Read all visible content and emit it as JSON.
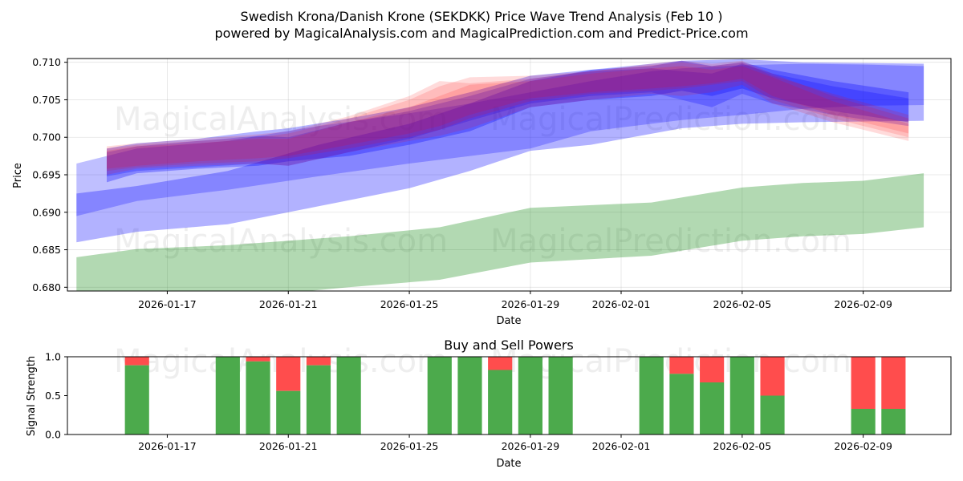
{
  "chart_data": [
    {
      "type": "area",
      "title_line1": "Swedish Krona/Danish Krone (SEKDKK) Price Wave Trend Analysis (Feb 10 )",
      "title_line2": "powered by MagicalAnalysis.com and MagicalPrediction.com and Predict-Price.com",
      "xlabel": "Date",
      "ylabel": "Price",
      "ylim": [
        0.6795,
        0.7105
      ],
      "xlim_days": [
        -3.3,
        25.9
      ],
      "date_origin": "2026-01-17",
      "x_ticks": [
        {
          "day": 0,
          "label": "2026-01-17"
        },
        {
          "day": 4,
          "label": "2026-01-21"
        },
        {
          "day": 8,
          "label": "2026-01-25"
        },
        {
          "day": 12,
          "label": "2026-01-29"
        },
        {
          "day": 15,
          "label": "2026-02-01"
        },
        {
          "day": 19,
          "label": "2026-02-05"
        },
        {
          "day": 23,
          "label": "2026-02-09"
        }
      ],
      "y_ticks": [
        {
          "value": 0.68,
          "label": "0.680"
        },
        {
          "value": 0.685,
          "label": "0.685"
        },
        {
          "value": 0.69,
          "label": "0.690"
        },
        {
          "value": 0.695,
          "label": "0.695"
        },
        {
          "value": 0.7,
          "label": "0.700"
        },
        {
          "value": 0.705,
          "label": "0.705"
        },
        {
          "value": 0.71,
          "label": "0.710"
        }
      ],
      "watermarks": [
        "MagicalAnalysis.com",
        "MagicalPrediction.com",
        "MagicalAnalysis.com",
        "MagicalPrediction.com"
      ],
      "bands": [
        {
          "name": "long-term-trend",
          "color": "#008000",
          "opacity": 0.3,
          "x": [
            -3,
            -1,
            2,
            6,
            9,
            12,
            16,
            19,
            21,
            23,
            25
          ],
          "lower": [
            0.678,
            0.6782,
            0.6785,
            0.68,
            0.681,
            0.6833,
            0.6842,
            0.6862,
            0.6868,
            0.6871,
            0.688
          ],
          "upper": [
            0.684,
            0.6851,
            0.6856,
            0.6868,
            0.688,
            0.6906,
            0.6913,
            0.6933,
            0.6939,
            0.6942,
            0.6952
          ]
        },
        {
          "name": "mid-band-wide",
          "color": "#0000ff",
          "opacity": 0.3,
          "x": [
            -3,
            -1,
            2,
            5,
            8,
            10,
            12,
            14,
            17,
            19,
            21,
            25
          ],
          "lower": [
            0.686,
            0.6874,
            0.6884,
            0.6908,
            0.6932,
            0.6955,
            0.6982,
            0.699,
            0.7012,
            0.7018,
            0.702,
            0.7022
          ],
          "upper": [
            0.6925,
            0.6935,
            0.6955,
            0.699,
            0.7018,
            0.7045,
            0.7075,
            0.709,
            0.7102,
            0.7104,
            0.71,
            0.7098
          ]
        },
        {
          "name": "mid-band-upper",
          "color": "#0000ff",
          "opacity": 0.25,
          "x": [
            -3,
            -1,
            2,
            5,
            8,
            10,
            12,
            14,
            16,
            17,
            19,
            21,
            23,
            25
          ],
          "lower": [
            0.6895,
            0.6915,
            0.693,
            0.6948,
            0.6965,
            0.6975,
            0.6985,
            0.7008,
            0.7018,
            0.7023,
            0.703,
            0.7038,
            0.7042,
            0.7043
          ],
          "upper": [
            0.6965,
            0.6985,
            0.6995,
            0.7015,
            0.7032,
            0.7045,
            0.706,
            0.7075,
            0.7088,
            0.7092,
            0.7096,
            0.7098,
            0.7097,
            0.7095
          ]
        },
        {
          "name": "blue-short-1",
          "color": "#0000ff",
          "opacity": 0.3,
          "x": [
            -2,
            -1,
            1,
            3,
            4,
            6,
            8,
            10,
            12,
            14,
            16,
            17,
            18,
            19,
            20,
            22,
            24.5
          ],
          "lower": [
            0.694,
            0.6952,
            0.6958,
            0.6962,
            0.6968,
            0.6975,
            0.699,
            0.7008,
            0.704,
            0.705,
            0.7055,
            0.7062,
            0.7055,
            0.7065,
            0.7052,
            0.7035,
            0.702
          ],
          "upper": [
            0.6985,
            0.6992,
            0.6998,
            0.7008,
            0.7012,
            0.7025,
            0.704,
            0.706,
            0.7082,
            0.709,
            0.7095,
            0.7102,
            0.7095,
            0.71,
            0.709,
            0.7075,
            0.706
          ]
        },
        {
          "name": "blue-short-2",
          "color": "#0000ff",
          "opacity": 0.25,
          "x": [
            -2,
            -1,
            1,
            3,
            4,
            6,
            8,
            10,
            12,
            14,
            16,
            17,
            18,
            19,
            20,
            22,
            24.5
          ],
          "lower": [
            0.6948,
            0.6955,
            0.696,
            0.6965,
            0.6962,
            0.698,
            0.6998,
            0.7022,
            0.7045,
            0.7055,
            0.706,
            0.705,
            0.704,
            0.7058,
            0.7045,
            0.703,
            0.7015
          ],
          "upper": [
            0.698,
            0.6988,
            0.6995,
            0.7002,
            0.7,
            0.702,
            0.7035,
            0.7055,
            0.7078,
            0.7088,
            0.7092,
            0.7088,
            0.7085,
            0.7098,
            0.7085,
            0.7068,
            0.7052
          ]
        },
        {
          "name": "red-short-1",
          "color": "#ff0000",
          "opacity": 0.14,
          "x": [
            -2,
            -1,
            1,
            3,
            4,
            6,
            8,
            9,
            10,
            12,
            14,
            16,
            17,
            18,
            19,
            20,
            22,
            24.5
          ],
          "lower": [
            0.6955,
            0.696,
            0.6965,
            0.6968,
            0.6972,
            0.6985,
            0.7,
            0.701,
            0.7025,
            0.7048,
            0.7058,
            0.7062,
            0.7065,
            0.707,
            0.7075,
            0.705,
            0.7025,
            0.7
          ],
          "upper": [
            0.6985,
            0.699,
            0.6995,
            0.7,
            0.7005,
            0.7025,
            0.705,
            0.7068,
            0.708,
            0.7082,
            0.7088,
            0.7098,
            0.7102,
            0.7098,
            0.7102,
            0.7085,
            0.7055,
            0.7025
          ]
        },
        {
          "name": "red-short-2",
          "color": "#ff0000",
          "opacity": 0.14,
          "x": [
            -2,
            -1,
            1,
            3,
            4,
            6,
            8,
            9,
            10,
            12,
            14,
            16,
            17,
            18,
            19,
            20,
            22,
            24.5
          ],
          "lower": [
            0.695,
            0.6958,
            0.6962,
            0.6965,
            0.6962,
            0.698,
            0.6995,
            0.7002,
            0.7012,
            0.704,
            0.705,
            0.7058,
            0.7055,
            0.706,
            0.707,
            0.7045,
            0.702,
            0.6995
          ],
          "upper": [
            0.6982,
            0.6988,
            0.6992,
            0.6998,
            0.6998,
            0.702,
            0.704,
            0.7055,
            0.707,
            0.7075,
            0.7085,
            0.7092,
            0.7095,
            0.709,
            0.7095,
            0.708,
            0.7048,
            0.7018
          ]
        },
        {
          "name": "red-short-3",
          "color": "#ff0000",
          "opacity": 0.14,
          "x": [
            -2,
            -1,
            1,
            3,
            4,
            6,
            8,
            9,
            10,
            12,
            14,
            16,
            17,
            18,
            19,
            20,
            22,
            24.5
          ],
          "lower": [
            0.6958,
            0.6962,
            0.6968,
            0.6972,
            0.6975,
            0.699,
            0.7005,
            0.7015,
            0.703,
            0.7052,
            0.706,
            0.7065,
            0.7068,
            0.7072,
            0.7078,
            0.7055,
            0.703,
            0.7005
          ],
          "upper": [
            0.6988,
            0.6992,
            0.6998,
            0.7004,
            0.7008,
            0.7028,
            0.7055,
            0.7075,
            0.7072,
            0.7078,
            0.7088,
            0.7096,
            0.71,
            0.7095,
            0.71,
            0.7082,
            0.7058,
            0.703
          ]
        }
      ]
    },
    {
      "type": "bar",
      "title": "Buy and Sell Powers",
      "xlabel": "Date",
      "ylabel": "Signal Strength",
      "ylim": [
        0,
        1
      ],
      "xlim_days": [
        -3.3,
        25.9
      ],
      "y_ticks": [
        {
          "value": 0.0,
          "label": "0.0"
        },
        {
          "value": 0.5,
          "label": "0.5"
        },
        {
          "value": 1.0,
          "label": "1.0"
        }
      ],
      "x_ticks": [
        {
          "day": 0,
          "label": "2026-01-17"
        },
        {
          "day": 4,
          "label": "2026-01-21"
        },
        {
          "day": 8,
          "label": "2026-01-25"
        },
        {
          "day": 12,
          "label": "2026-01-29"
        },
        {
          "day": 15,
          "label": "2026-02-01"
        },
        {
          "day": 19,
          "label": "2026-02-05"
        },
        {
          "day": 23,
          "label": "2026-02-09"
        }
      ],
      "buy_color": "#4caa4c",
      "sell_color": "#ff4d4d",
      "bars": [
        {
          "day": -1,
          "buy": 0.89
        },
        {
          "day": 2,
          "buy": 1.0
        },
        {
          "day": 3,
          "buy": 0.94
        },
        {
          "day": 4,
          "buy": 0.56
        },
        {
          "day": 5,
          "buy": 0.89
        },
        {
          "day": 6,
          "buy": 1.0
        },
        {
          "day": 9,
          "buy": 1.0
        },
        {
          "day": 10,
          "buy": 1.0
        },
        {
          "day": 11,
          "buy": 0.83
        },
        {
          "day": 12,
          "buy": 1.0
        },
        {
          "day": 13,
          "buy": 1.0
        },
        {
          "day": 16,
          "buy": 1.0
        },
        {
          "day": 17,
          "buy": 0.78
        },
        {
          "day": 18,
          "buy": 0.67
        },
        {
          "day": 19,
          "buy": 1.0
        },
        {
          "day": 20,
          "buy": 0.5
        },
        {
          "day": 23,
          "buy": 0.33
        },
        {
          "day": 24,
          "buy": 0.33
        }
      ]
    }
  ]
}
